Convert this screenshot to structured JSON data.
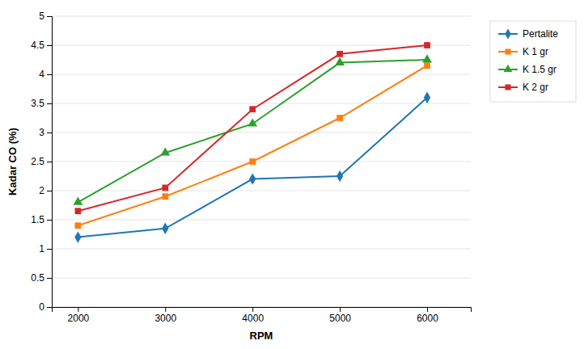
{
  "chart_data": {
    "type": "line",
    "x": [
      2000,
      3000,
      4000,
      5000,
      6000
    ],
    "series": [
      {
        "name": "Pertalite",
        "marker": "diamond",
        "values": [
          1.2,
          1.35,
          2.2,
          2.25,
          3.6
        ]
      },
      {
        "name": "K 1 gr",
        "marker": "square",
        "values": [
          1.4,
          1.9,
          2.5,
          3.25,
          4.15
        ]
      },
      {
        "name": "K 1.5 gr",
        "marker": "triangle",
        "values": [
          1.8,
          2.65,
          3.15,
          4.2,
          4.25
        ]
      },
      {
        "name": "K 2 gr",
        "marker": "square",
        "values": [
          1.65,
          2.05,
          3.4,
          4.35,
          4.5
        ]
      }
    ],
    "xlabel": "RPM",
    "ylabel": "Kadar CO (%)",
    "xlim": [
      1700,
      6500
    ],
    "xticks": [
      2000,
      3000,
      4000,
      5000,
      6000
    ],
    "ylim": [
      0,
      5
    ],
    "yticks": [
      0,
      0.5,
      1,
      1.5,
      2,
      2.5,
      3,
      3.5,
      4,
      4.5,
      5
    ],
    "grid": true,
    "legend": "right"
  }
}
